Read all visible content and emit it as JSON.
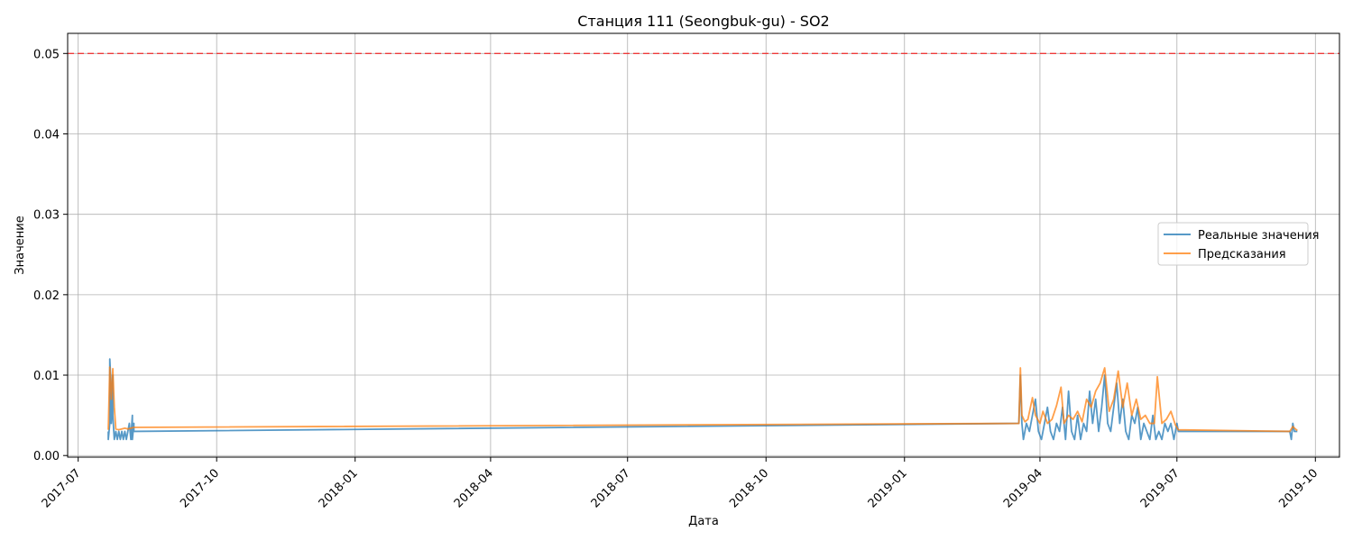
{
  "chart_data": {
    "type": "line",
    "title": "Станция 111 (Seongbuk-gu) - SO2",
    "xlabel": "Дата",
    "ylabel": "Значение",
    "x_ticks": [
      "2017-07",
      "2017-10",
      "2018-01",
      "2018-04",
      "2018-07",
      "2018-10",
      "2019-01",
      "2019-04",
      "2019-07",
      "2019-10"
    ],
    "y_ticks": [
      "0.00",
      "0.01",
      "0.02",
      "0.03",
      "0.04",
      "0.05"
    ],
    "xlim": [
      "2017-06-24",
      "2019-10-17"
    ],
    "ylim": [
      -0.0002,
      0.0525
    ],
    "grid": true,
    "legend_position": "center-right",
    "threshold": {
      "value": 0.05,
      "style": "dashed",
      "color": "#ff0000"
    },
    "series": [
      {
        "name": "Реальные значения",
        "color": "#1f77b4",
        "points": [
          [
            "2017-07-21",
            0.003
          ],
          [
            "2017-07-21",
            0.002
          ],
          [
            "2017-07-22",
            0.004
          ],
          [
            "2017-07-22",
            0.012
          ],
          [
            "2017-07-23",
            0.008
          ],
          [
            "2017-07-23",
            0.004
          ],
          [
            "2017-07-24",
            0.01
          ],
          [
            "2017-07-24",
            0.005
          ],
          [
            "2017-07-25",
            0.002
          ],
          [
            "2017-07-26",
            0.003
          ],
          [
            "2017-07-27",
            0.002
          ],
          [
            "2017-07-28",
            0.003
          ],
          [
            "2017-07-29",
            0.002
          ],
          [
            "2017-07-30",
            0.003
          ],
          [
            "2017-07-31",
            0.002
          ],
          [
            "2017-08-01",
            0.003
          ],
          [
            "2017-08-02",
            0.002
          ],
          [
            "2017-08-03",
            0.003
          ],
          [
            "2017-08-04",
            0.004
          ],
          [
            "2017-08-05",
            0.002
          ],
          [
            "2017-08-06",
            0.005
          ],
          [
            "2017-08-06",
            0.002
          ],
          [
            "2017-08-07",
            0.004
          ],
          [
            "2017-08-07",
            0.003
          ],
          [
            "2019-03-18",
            0.004
          ],
          [
            "2019-03-19",
            0.01
          ],
          [
            "2019-03-20",
            0.004
          ],
          [
            "2019-03-21",
            0.002
          ],
          [
            "2019-03-23",
            0.004
          ],
          [
            "2019-03-25",
            0.003
          ],
          [
            "2019-03-27",
            0.005
          ],
          [
            "2019-03-29",
            0.007
          ],
          [
            "2019-03-31",
            0.003
          ],
          [
            "2019-04-02",
            0.002
          ],
          [
            "2019-04-04",
            0.004
          ],
          [
            "2019-04-06",
            0.006
          ],
          [
            "2019-04-08",
            0.003
          ],
          [
            "2019-04-10",
            0.002
          ],
          [
            "2019-04-12",
            0.004
          ],
          [
            "2019-04-14",
            0.003
          ],
          [
            "2019-04-16",
            0.006
          ],
          [
            "2019-04-18",
            0.002
          ],
          [
            "2019-04-20",
            0.008
          ],
          [
            "2019-04-22",
            0.003
          ],
          [
            "2019-04-24",
            0.002
          ],
          [
            "2019-04-26",
            0.005
          ],
          [
            "2019-04-28",
            0.002
          ],
          [
            "2019-04-30",
            0.004
          ],
          [
            "2019-05-02",
            0.003
          ],
          [
            "2019-05-04",
            0.008
          ],
          [
            "2019-05-06",
            0.004
          ],
          [
            "2019-05-08",
            0.007
          ],
          [
            "2019-05-10",
            0.003
          ],
          [
            "2019-05-12",
            0.006
          ],
          [
            "2019-05-14",
            0.01
          ],
          [
            "2019-05-16",
            0.004
          ],
          [
            "2019-05-18",
            0.003
          ],
          [
            "2019-05-20",
            0.006
          ],
          [
            "2019-05-22",
            0.009
          ],
          [
            "2019-05-24",
            0.004
          ],
          [
            "2019-05-26",
            0.007
          ],
          [
            "2019-05-28",
            0.003
          ],
          [
            "2019-05-30",
            0.002
          ],
          [
            "2019-06-01",
            0.005
          ],
          [
            "2019-06-03",
            0.004
          ],
          [
            "2019-06-05",
            0.006
          ],
          [
            "2019-06-07",
            0.002
          ],
          [
            "2019-06-09",
            0.004
          ],
          [
            "2019-06-11",
            0.003
          ],
          [
            "2019-06-13",
            0.002
          ],
          [
            "2019-06-15",
            0.005
          ],
          [
            "2019-06-17",
            0.002
          ],
          [
            "2019-06-19",
            0.003
          ],
          [
            "2019-06-21",
            0.002
          ],
          [
            "2019-06-23",
            0.004
          ],
          [
            "2019-06-25",
            0.003
          ],
          [
            "2019-06-27",
            0.004
          ],
          [
            "2019-06-29",
            0.002
          ],
          [
            "2019-07-01",
            0.004
          ],
          [
            "2019-07-02",
            0.003
          ],
          [
            "2019-09-14",
            0.003
          ],
          [
            "2019-09-15",
            0.002
          ],
          [
            "2019-09-16",
            0.004
          ],
          [
            "2019-09-17",
            0.003
          ],
          [
            "2019-09-19",
            0.003
          ]
        ]
      },
      {
        "name": "Предсказания",
        "color": "#ff7f0e",
        "points": [
          [
            "2017-07-21",
            0.0032
          ],
          [
            "2017-07-22",
            0.011
          ],
          [
            "2017-07-23",
            0.007
          ],
          [
            "2017-07-24",
            0.0108
          ],
          [
            "2017-07-25",
            0.006
          ],
          [
            "2017-07-26",
            0.0033
          ],
          [
            "2017-07-28",
            0.0032
          ],
          [
            "2017-07-30",
            0.0033
          ],
          [
            "2017-08-01",
            0.0034
          ],
          [
            "2017-08-03",
            0.0033
          ],
          [
            "2017-08-05",
            0.0034
          ],
          [
            "2017-08-07",
            0.0035
          ],
          [
            "2019-03-18",
            0.004
          ],
          [
            "2019-03-19",
            0.0109
          ],
          [
            "2019-03-20",
            0.005
          ],
          [
            "2019-03-22",
            0.0042
          ],
          [
            "2019-03-24",
            0.0045
          ],
          [
            "2019-03-27",
            0.0072
          ],
          [
            "2019-03-29",
            0.005
          ],
          [
            "2019-04-01",
            0.004
          ],
          [
            "2019-04-03",
            0.0055
          ],
          [
            "2019-04-06",
            0.004
          ],
          [
            "2019-04-09",
            0.0045
          ],
          [
            "2019-04-12",
            0.0062
          ],
          [
            "2019-04-15",
            0.0085
          ],
          [
            "2019-04-17",
            0.004
          ],
          [
            "2019-04-20",
            0.005
          ],
          [
            "2019-04-23",
            0.0045
          ],
          [
            "2019-04-26",
            0.0055
          ],
          [
            "2019-04-29",
            0.0042
          ],
          [
            "2019-05-02",
            0.007
          ],
          [
            "2019-05-05",
            0.006
          ],
          [
            "2019-05-08",
            0.008
          ],
          [
            "2019-05-11",
            0.009
          ],
          [
            "2019-05-14",
            0.0109
          ],
          [
            "2019-05-17",
            0.0055
          ],
          [
            "2019-05-20",
            0.007
          ],
          [
            "2019-05-23",
            0.0105
          ],
          [
            "2019-05-26",
            0.006
          ],
          [
            "2019-05-29",
            0.009
          ],
          [
            "2019-06-01",
            0.005
          ],
          [
            "2019-06-04",
            0.007
          ],
          [
            "2019-06-07",
            0.0045
          ],
          [
            "2019-06-10",
            0.005
          ],
          [
            "2019-06-13",
            0.004
          ],
          [
            "2019-06-16",
            0.004
          ],
          [
            "2019-06-18",
            0.0098
          ],
          [
            "2019-06-21",
            0.004
          ],
          [
            "2019-06-24",
            0.0045
          ],
          [
            "2019-06-27",
            0.0055
          ],
          [
            "2019-06-30",
            0.0038
          ],
          [
            "2019-07-02",
            0.0032
          ],
          [
            "2019-09-14",
            0.003
          ],
          [
            "2019-09-16",
            0.0036
          ],
          [
            "2019-09-19",
            0.0031
          ]
        ]
      }
    ]
  }
}
